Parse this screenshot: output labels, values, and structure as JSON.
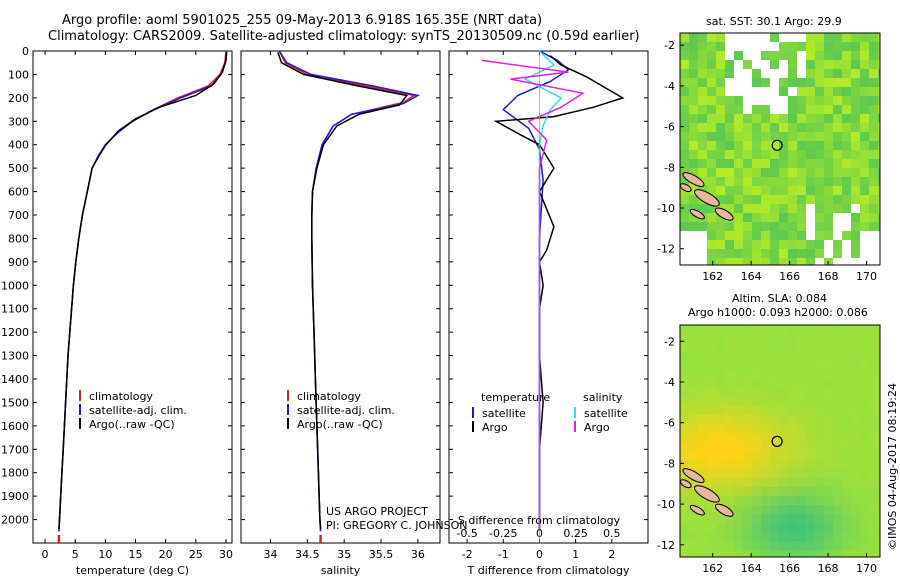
{
  "header": {
    "title_line1": "Argo profile: aoml 5901025_255 09-May-2013 6.918S 165.35E (NRT data)",
    "title_line2": "Climatology: CARS2009. Satellite-adjusted climatology: synTS_20130509.nc (0.59d earlier)"
  },
  "credit": "©IMOS 04-Aug-2017 08:19:24",
  "project_note": {
    "line1": "US ARGO PROJECT",
    "line2": "PI: GREGORY C. JOHNSON"
  },
  "chart_data": [
    {
      "type": "line",
      "panel": "temperature",
      "xlabel": "temperature (deg C)",
      "ylabel": "",
      "xlim": [
        -2,
        31
      ],
      "ylim": [
        2100,
        0
      ],
      "xticks": [
        0,
        5,
        10,
        15,
        20,
        25,
        30
      ],
      "yticks": [
        0,
        100,
        200,
        300,
        400,
        500,
        600,
        700,
        800,
        900,
        1000,
        1100,
        1200,
        1300,
        1400,
        1500,
        1600,
        1700,
        1800,
        1900,
        2000
      ],
      "legend": [
        "climatology",
        "satellite-adj. clim.",
        "Argo(..raw -QC)"
      ],
      "series": [
        {
          "name": "climatology",
          "color": "#e02020",
          "points": [
            [
              30,
              0
            ],
            [
              29.8,
              50
            ],
            [
              29,
              100
            ],
            [
              27,
              150
            ],
            [
              22,
              200
            ],
            [
              18,
              250
            ],
            [
              14.5,
              300
            ],
            [
              12,
              350
            ],
            [
              10,
              400
            ],
            [
              8.8,
              450
            ],
            [
              7.8,
              500
            ],
            [
              7,
              600
            ],
            [
              6.2,
              700
            ],
            [
              5.6,
              800
            ],
            [
              5.1,
              900
            ],
            [
              4.7,
              1000
            ],
            [
              4.4,
              1100
            ],
            [
              4.1,
              1200
            ],
            [
              3.8,
              1300
            ],
            [
              3.6,
              1400
            ],
            [
              3.4,
              1500
            ],
            [
              3.2,
              1600
            ],
            [
              3,
              1700
            ],
            [
              2.8,
              1800
            ],
            [
              2.6,
              1900
            ],
            [
              2.4,
              2000
            ],
            [
              2.3,
              2050
            ]
          ]
        },
        {
          "name": "satellite-adj. clim.",
          "color": "#1a1ad8",
          "points": [
            [
              30.1,
              0
            ],
            [
              29.9,
              50
            ],
            [
              29.2,
              100
            ],
            [
              27.5,
              150
            ],
            [
              22.5,
              200
            ],
            [
              18,
              250
            ],
            [
              14.5,
              300
            ],
            [
              12,
              350
            ],
            [
              10,
              400
            ],
            [
              8.8,
              450
            ],
            [
              7.8,
              500
            ],
            [
              7,
              600
            ],
            [
              6.2,
              700
            ],
            [
              5.6,
              800
            ],
            [
              5.1,
              900
            ],
            [
              4.7,
              1000
            ],
            [
              4.4,
              1100
            ],
            [
              4.1,
              1200
            ],
            [
              3.8,
              1300
            ],
            [
              3.6,
              1400
            ],
            [
              3.4,
              1500
            ],
            [
              3.2,
              1600
            ],
            [
              3,
              1700
            ],
            [
              2.8,
              1800
            ],
            [
              2.6,
              1900
            ],
            [
              2.4,
              2000
            ],
            [
              2.3,
              2050
            ]
          ]
        },
        {
          "name": "Argo(..raw -QC)",
          "color": "#000000",
          "points": [
            [
              30.1,
              5
            ],
            [
              30,
              40
            ],
            [
              29.4,
              90
            ],
            [
              28,
              140
            ],
            [
              25,
              190
            ],
            [
              19,
              240
            ],
            [
              15,
              290
            ],
            [
              12.2,
              340
            ],
            [
              10.1,
              400
            ],
            [
              8.9,
              450
            ],
            [
              7.8,
              500
            ],
            [
              7,
              600
            ],
            [
              6.2,
              700
            ],
            [
              5.6,
              800
            ],
            [
              5.1,
              900
            ],
            [
              4.7,
              1000
            ],
            [
              4.4,
              1100
            ],
            [
              4.1,
              1200
            ],
            [
              3.8,
              1300
            ],
            [
              3.6,
              1400
            ],
            [
              3.4,
              1500
            ],
            [
              3.2,
              1600
            ],
            [
              3,
              1700
            ],
            [
              2.8,
              1800
            ],
            [
              2.6,
              1900
            ],
            [
              2.4,
              2000
            ],
            [
              2.3,
              2040
            ]
          ]
        }
      ]
    },
    {
      "type": "line",
      "panel": "salinity",
      "xlabel": "salinity",
      "ylabel": "",
      "xlim": [
        33.6,
        36.3
      ],
      "ylim": [
        2100,
        0
      ],
      "xticks": [
        34,
        34.5,
        35,
        35.5,
        36
      ],
      "legend": [
        "climatology",
        "satellite-adj. clim.",
        "Argo(..raw -QC)"
      ],
      "series": [
        {
          "name": "climatology",
          "color": "#e02020",
          "points": [
            [
              34.12,
              0
            ],
            [
              34.2,
              50
            ],
            [
              34.5,
              100
            ],
            [
              35.3,
              150
            ],
            [
              35.95,
              190
            ],
            [
              35.8,
              220
            ],
            [
              35.1,
              270
            ],
            [
              34.85,
              320
            ],
            [
              34.7,
              400
            ],
            [
              34.62,
              500
            ],
            [
              34.57,
              600
            ],
            [
              34.56,
              700
            ],
            [
              34.56,
              800
            ],
            [
              34.57,
              1000
            ],
            [
              34.59,
              1200
            ],
            [
              34.61,
              1400
            ],
            [
              34.63,
              1600
            ],
            [
              34.65,
              1800
            ],
            [
              34.67,
              2000
            ],
            [
              34.68,
              2050
            ]
          ]
        },
        {
          "name": "satellite-adj. clim.",
          "color": "#1a1ad8",
          "points": [
            [
              34.12,
              0
            ],
            [
              34.22,
              50
            ],
            [
              34.55,
              100
            ],
            [
              35.4,
              150
            ],
            [
              36.0,
              190
            ],
            [
              35.8,
              225
            ],
            [
              35.1,
              270
            ],
            [
              34.85,
              320
            ],
            [
              34.7,
              400
            ],
            [
              34.62,
              500
            ],
            [
              34.57,
              600
            ],
            [
              34.56,
              700
            ],
            [
              34.56,
              800
            ],
            [
              34.57,
              1000
            ],
            [
              34.59,
              1200
            ],
            [
              34.61,
              1400
            ],
            [
              34.63,
              1600
            ],
            [
              34.65,
              1800
            ],
            [
              34.67,
              2000
            ],
            [
              34.68,
              2050
            ]
          ]
        },
        {
          "name": "Argo(..raw -QC)",
          "color": "#000000",
          "points": [
            [
              34.1,
              5
            ],
            [
              34.15,
              50
            ],
            [
              34.45,
              100
            ],
            [
              35.2,
              150
            ],
            [
              35.85,
              190
            ],
            [
              35.75,
              230
            ],
            [
              35.2,
              270
            ],
            [
              34.9,
              320
            ],
            [
              34.72,
              400
            ],
            [
              34.63,
              500
            ],
            [
              34.57,
              600
            ],
            [
              34.56,
              700
            ],
            [
              34.56,
              800
            ],
            [
              34.57,
              1000
            ],
            [
              34.59,
              1200
            ],
            [
              34.61,
              1400
            ],
            [
              34.63,
              1600
            ],
            [
              34.65,
              1800
            ],
            [
              34.67,
              2000
            ],
            [
              34.68,
              2040
            ]
          ]
        }
      ]
    },
    {
      "type": "line",
      "panel": "difference",
      "xlabel": "T difference from climatology",
      "xlabel2": "S difference from climatology",
      "xlim": [
        -2.5,
        3
      ],
      "ylim": [
        2100,
        0
      ],
      "xticks": [
        -2,
        -1,
        0,
        1,
        2
      ],
      "s_xticks": [
        "-0.5",
        "-0.25",
        "0",
        "0.25",
        "0.5"
      ],
      "legend_temperature": {
        "heading": "temperature",
        "items": [
          "satellite",
          "Argo"
        ]
      },
      "legend_salinity": {
        "heading": "salinity",
        "items": [
          "satellite",
          "Argo"
        ]
      },
      "series": [
        {
          "name": "temperature satellite",
          "color": "#1a1ad8",
          "points": [
            [
              0,
              0
            ],
            [
              0.5,
              40
            ],
            [
              0.8,
              80
            ],
            [
              0.3,
              130
            ],
            [
              -0.6,
              190
            ],
            [
              -1.0,
              250
            ],
            [
              -0.3,
              330
            ],
            [
              0,
              420
            ],
            [
              0.1,
              550
            ],
            [
              0,
              800
            ],
            [
              0,
              2050
            ]
          ]
        },
        {
          "name": "temperature Argo",
          "color": "#000000",
          "points": [
            [
              0.3,
              20
            ],
            [
              0.6,
              60
            ],
            [
              1.3,
              110
            ],
            [
              2.3,
              200
            ],
            [
              1.5,
              240
            ],
            [
              0.4,
              280
            ],
            [
              -1.2,
              300
            ],
            [
              -0.5,
              360
            ],
            [
              0,
              400
            ],
            [
              0.4,
              500
            ],
            [
              0,
              600
            ],
            [
              0.4,
              750
            ],
            [
              0.2,
              850
            ],
            [
              0,
              900
            ],
            [
              0.1,
              1000
            ],
            [
              0,
              1100
            ],
            [
              0,
              1300
            ],
            [
              0.1,
              1500
            ],
            [
              0,
              1700
            ],
            [
              0,
              1900
            ],
            [
              0,
              2040
            ]
          ]
        },
        {
          "name": "salinity satellite",
          "color": "#33dddd",
          "points": [
            [
              0,
              0
            ],
            [
              0.4,
              60
            ],
            [
              -0.4,
              120
            ],
            [
              0.6,
              200
            ],
            [
              0.3,
              250
            ],
            [
              0.1,
              320
            ],
            [
              0,
              400
            ],
            [
              0,
              2050
            ]
          ]
        },
        {
          "name": "salinity Argo",
          "color": "#dd22dd",
          "points": [
            [
              -1.6,
              40
            ],
            [
              0.8,
              90
            ],
            [
              -0.8,
              120
            ],
            [
              1.2,
              180
            ],
            [
              0.6,
              240
            ],
            [
              -0.3,
              300
            ],
            [
              0.2,
              380
            ],
            [
              0,
              500
            ],
            [
              0,
              2040
            ]
          ]
        }
      ]
    }
  ],
  "maps": [
    {
      "title": "sat. SST: 30.1  Argo: 29.9",
      "lonlim": [
        160.3,
        170.7
      ],
      "latlim": [
        -12.8,
        -1.4
      ],
      "lonticks": [
        162,
        164,
        166,
        168,
        170
      ],
      "latticks": [
        -2,
        -4,
        -6,
        -8,
        -10,
        -12
      ],
      "profile_location": [
        165.35,
        -6.918
      ]
    },
    {
      "title_line1": "Altim. SLA: 0.084",
      "title_line2": "Argo h1000: 0.093  h2000: 0.086",
      "lonlim": [
        160.3,
        170.7
      ],
      "latlim": [
        -12.6,
        -1.2
      ],
      "lonticks": [
        162,
        164,
        166,
        168,
        170
      ],
      "latticks": [
        -2,
        -4,
        -6,
        -8,
        -10,
        -12
      ],
      "profile_location": [
        165.35,
        -6.918
      ]
    }
  ]
}
